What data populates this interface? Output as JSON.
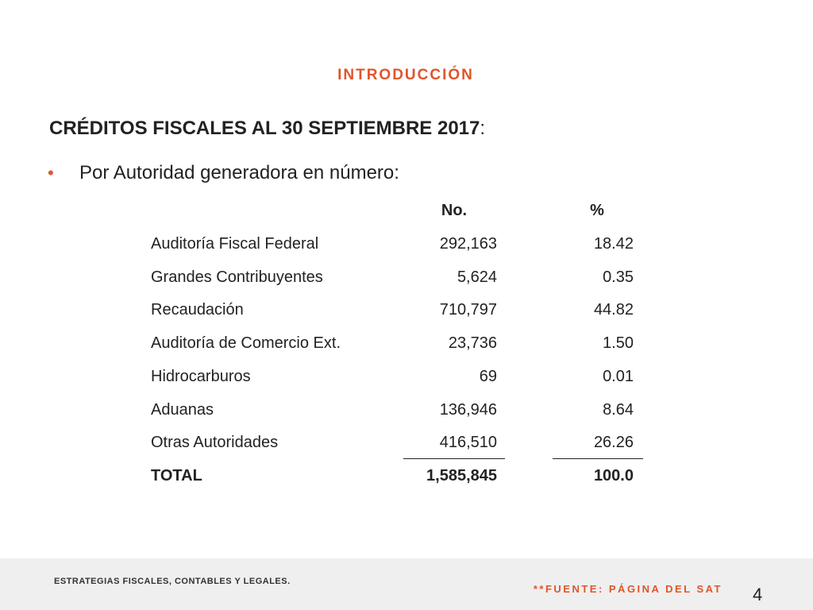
{
  "header": {
    "title": "INTRODUCCIÓN"
  },
  "heading": {
    "text": "CRÉDITOS FISCALES AL 30 SEPTIEMBRE 2017",
    "punctuation": ":"
  },
  "bullet": {
    "marker": "•",
    "text": "Por Autoridad generadora en número:"
  },
  "table": {
    "columns": [
      "No.",
      "%"
    ],
    "rows": [
      [
        "Auditoría Fiscal Federal",
        "292,163",
        "18.42"
      ],
      [
        "Grandes Contribuyentes",
        "5,624",
        "0.35"
      ],
      [
        "Recaudación",
        "710,797",
        "44.82"
      ],
      [
        "Auditoría de Comercio Ext.",
        "23,736",
        "1.50"
      ],
      [
        "Hidrocarburos",
        "69",
        "0.01"
      ],
      [
        "Aduanas",
        "136,946",
        "8.64"
      ],
      [
        "Otras Autoridades",
        "416,510",
        "26.26"
      ]
    ],
    "total": [
      "TOTAL",
      "1,585,845",
      "100.0"
    ]
  },
  "footer": {
    "company": "ESTRATEGIAS FISCALES, CONTABLES Y LEGALES.",
    "source": "**FUENTE: PÁGINA DEL SAT",
    "page": "4"
  }
}
